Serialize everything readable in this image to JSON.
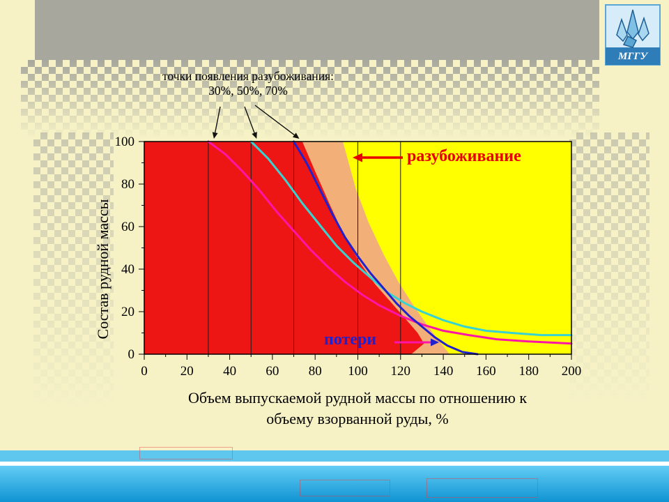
{
  "logo": {
    "text": "МГГУ"
  },
  "annotation": {
    "line1": "точки появления разубоживания:",
    "line2": "30%, 50%, 70%"
  },
  "labels": {
    "dilution": "разубоживание",
    "losses": "потери"
  },
  "chart_data": {
    "type": "area",
    "title": "",
    "ylabel": "Состав рудной массы",
    "xlabel_line1": "Объем выпускаемой рудной массы по отношению к",
    "xlabel_line2": "объему взорванной руды, %",
    "xlim": [
      0,
      200
    ],
    "ylim": [
      0,
      100
    ],
    "x_ticks": [
      0,
      20,
      40,
      60,
      80,
      100,
      120,
      140,
      160,
      180,
      200
    ],
    "y_ticks": [
      0,
      20,
      40,
      60,
      80,
      100
    ],
    "dilution_points": [
      30,
      50,
      70
    ],
    "marker_lines": [
      30,
      50,
      70,
      100,
      120
    ],
    "regions": [
      {
        "name": "waste-yellow",
        "color": "#ffff00",
        "points": [
          [
            0,
            0
          ],
          [
            0,
            100
          ],
          [
            200,
            100
          ],
          [
            200,
            0
          ]
        ]
      },
      {
        "name": "dilution-tan",
        "color": "#f2b078",
        "points": [
          [
            0,
            0
          ],
          [
            0,
            100
          ],
          [
            93,
            100
          ],
          [
            99,
            78
          ],
          [
            105,
            62
          ],
          [
            112,
            47
          ],
          [
            119,
            34
          ],
          [
            126,
            23
          ],
          [
            133,
            13
          ],
          [
            139,
            5
          ],
          [
            143,
            0
          ]
        ]
      },
      {
        "name": "ore-red",
        "color": "#ee1515",
        "points": [
          [
            0,
            0
          ],
          [
            0,
            100
          ],
          [
            74,
            100
          ],
          [
            80,
            86
          ],
          [
            87,
            70
          ],
          [
            94,
            55
          ],
          [
            101,
            43
          ],
          [
            108,
            33
          ],
          [
            115,
            25
          ],
          [
            122,
            17
          ],
          [
            128,
            10
          ],
          [
            131,
            5
          ],
          [
            125,
            0
          ]
        ]
      }
    ],
    "series": [
      {
        "name": "dilution-curve-30",
        "color": "#ff14a8",
        "width": 3,
        "points": [
          [
            30,
            100
          ],
          [
            38,
            94
          ],
          [
            46,
            86
          ],
          [
            54,
            77
          ],
          [
            62,
            67
          ],
          [
            70,
            58
          ],
          [
            78,
            49
          ],
          [
            86,
            41
          ],
          [
            94,
            34
          ],
          [
            102,
            28
          ],
          [
            110,
            23
          ],
          [
            120,
            18
          ],
          [
            130,
            14
          ],
          [
            140,
            11
          ],
          [
            152,
            9
          ],
          [
            165,
            7
          ],
          [
            180,
            6
          ],
          [
            200,
            5
          ]
        ]
      },
      {
        "name": "dilution-curve-50",
        "color": "#38d2d2",
        "width": 3,
        "points": [
          [
            50,
            100
          ],
          [
            58,
            92
          ],
          [
            66,
            82
          ],
          [
            74,
            71
          ],
          [
            82,
            61
          ],
          [
            90,
            51
          ],
          [
            98,
            43
          ],
          [
            106,
            36
          ],
          [
            114,
            29
          ],
          [
            122,
            24
          ],
          [
            130,
            20
          ],
          [
            140,
            16
          ],
          [
            150,
            13
          ],
          [
            160,
            11
          ],
          [
            172,
            10
          ],
          [
            186,
            9
          ],
          [
            200,
            9
          ]
        ]
      },
      {
        "name": "dilution-curve-70",
        "color": "#2222cc",
        "width": 3,
        "points": [
          [
            70,
            100
          ],
          [
            76,
            90
          ],
          [
            82,
            78
          ],
          [
            88,
            66
          ],
          [
            94,
            55
          ],
          [
            100,
            46
          ],
          [
            106,
            38
          ],
          [
            112,
            31
          ],
          [
            118,
            24
          ],
          [
            124,
            18
          ],
          [
            130,
            13
          ],
          [
            136,
            8
          ],
          [
            142,
            4
          ],
          [
            149,
            1
          ],
          [
            156,
            0
          ]
        ]
      }
    ]
  }
}
